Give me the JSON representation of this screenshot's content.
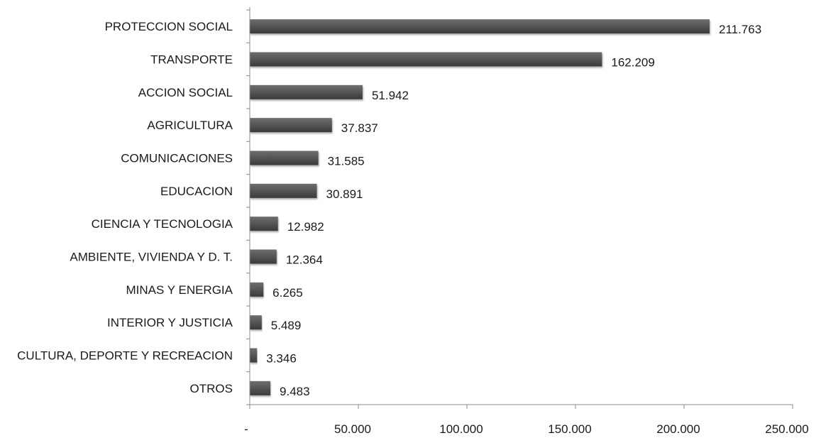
{
  "chart_data": {
    "type": "bar",
    "orientation": "horizontal",
    "title": "",
    "xlabel": "",
    "ylabel": "",
    "categories": [
      "PROTECCION SOCIAL",
      "TRANSPORTE",
      "ACCION SOCIAL",
      "AGRICULTURA",
      "COMUNICACIONES",
      "EDUCACION",
      "CIENCIA Y TECNOLOGIA",
      "AMBIENTE, VIVIENDA  Y D. T.",
      "MINAS Y ENERGIA",
      "INTERIOR  Y JUSTICIA",
      "CULTURA, DEPORTE Y RECREACION",
      "OTROS"
    ],
    "values": [
      211763,
      162209,
      51942,
      37837,
      31585,
      30891,
      12982,
      12364,
      6265,
      5489,
      3346,
      9483
    ],
    "value_labels": [
      "211.763",
      "162.209",
      "51.942",
      "37.837",
      "31.585",
      "30.891",
      "12.982",
      "12.364",
      "6.265",
      "5.489",
      "3.346",
      "9.483"
    ],
    "xlim": [
      0,
      250000
    ],
    "x_ticks": [
      0,
      50000,
      100000,
      150000,
      200000,
      250000
    ],
    "x_tick_labels": [
      "-",
      "50.000",
      "100.000",
      "150.000",
      "200.000",
      "250.000"
    ],
    "grid": false,
    "legend": "none",
    "bar_color": "#555555"
  }
}
